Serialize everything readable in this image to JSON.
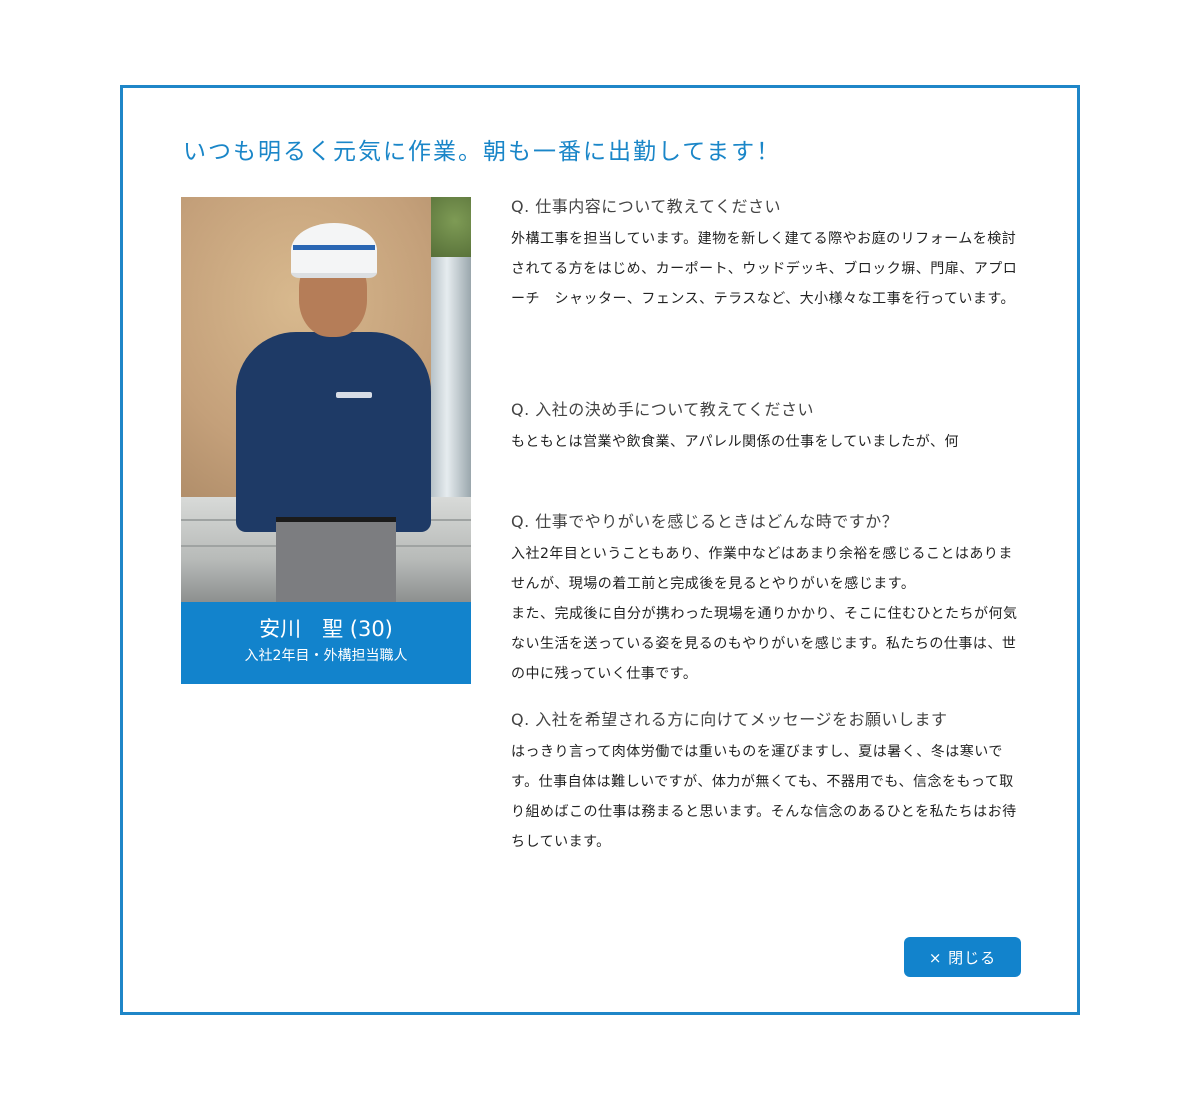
{
  "headline": "いつも明るく元気に作業。朝も一番に出勤してます！",
  "profile": {
    "name": "安川　聖 (30)",
    "role": "入社2年目・外構担当職人"
  },
  "qa": [
    {
      "question": "Q. 仕事内容について教えてください",
      "answer": "外構工事を担当しています。建物を新しく建てる際やお庭のリフォームを検討されてる方をはじめ、カーポート、ウッドデッキ、ブロック塀、門扉、アプローチ　シャッター、フェンス、テラスなど、大小様々な工事を行っています。"
    },
    {
      "question": "Q. 入社の決め手について教えてください",
      "answer": "もともとは営業や飲食業、アパレル関係の仕事をしていましたが、何"
    },
    {
      "question": "Q. 仕事でやりがいを感じるときはどんな時ですか？",
      "answer": "入社2年目ということもあり、作業中などはあまり余裕を感じることはありませんが、現場の着工前と完成後を見るとやりがいを感じます。\nまた、完成後に自分が携わった現場を通りかかり、そこに住むひとたちが何気ない生活を送っている姿を見るのもやりがいを感じます。私たちの仕事は、世の中に残っていく仕事です。"
    },
    {
      "question": "Q. 入社を希望される方に向けてメッセージをお願いします",
      "answer": "はっきり言って肉体労働では重いものを運びますし、夏は暑く、冬は寒いです。仕事自体は難しいですが、体力が無くても、不器用でも、信念をもって取り組めばこの仕事は務まると思います。そんな信念のあるひとを私たちはお待ちしています。"
    }
  ],
  "close_button": "× 閉じる",
  "colors": {
    "accent": "#1283cc",
    "border": "#1f86c8",
    "headline": "#1a86c8"
  }
}
